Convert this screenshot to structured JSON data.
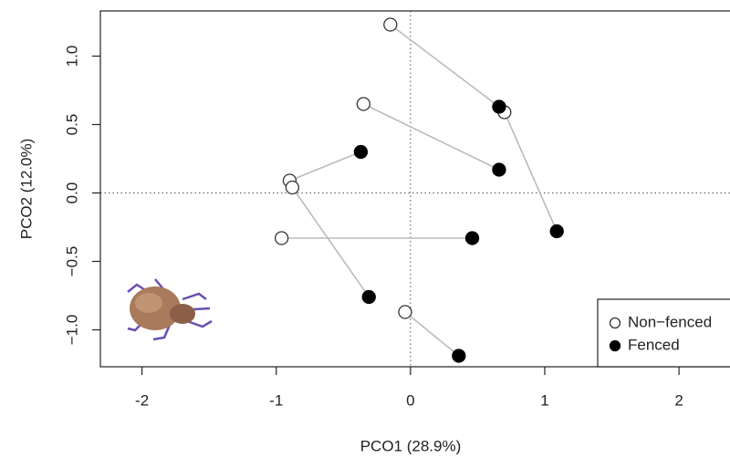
{
  "chart_data": {
    "type": "scatter",
    "xlabel": "PCO1 (28.9%)",
    "ylabel": "PCO2 (12.0%)",
    "xlim": [
      -2.31,
      2.38
    ],
    "ylim": [
      -1.27,
      1.33
    ],
    "xticks": [
      -2,
      -1,
      0,
      1,
      2
    ],
    "yticks": [
      {
        "value": -1.0,
        "label": "−1.0"
      },
      {
        "value": -0.5,
        "label": "−0.5"
      },
      {
        "value": 0.0,
        "label": "0.0"
      },
      {
        "value": 0.5,
        "label": "0.5"
      },
      {
        "value": 1.0,
        "label": "1.0"
      }
    ],
    "hline": 0,
    "vline": 0,
    "paired": true,
    "legend": "bottom right",
    "series": [
      {
        "name": "Non−fenced",
        "color": "#333333",
        "filled": false,
        "x": [
          -0.15,
          0.7,
          -0.35,
          -0.9,
          -0.88,
          -0.96,
          -0.04
        ],
        "values": [
          1.23,
          0.59,
          0.65,
          0.09,
          0.04,
          -0.33,
          -0.87
        ]
      },
      {
        "name": "Fenced",
        "color": "#000000",
        "filled": true,
        "x": [
          0.66,
          1.09,
          0.66,
          -0.37,
          -0.31,
          0.46,
          0.36
        ],
        "values": [
          0.63,
          -0.28,
          0.17,
          0.3,
          -0.76,
          -0.33,
          -1.19
        ]
      }
    ]
  }
}
